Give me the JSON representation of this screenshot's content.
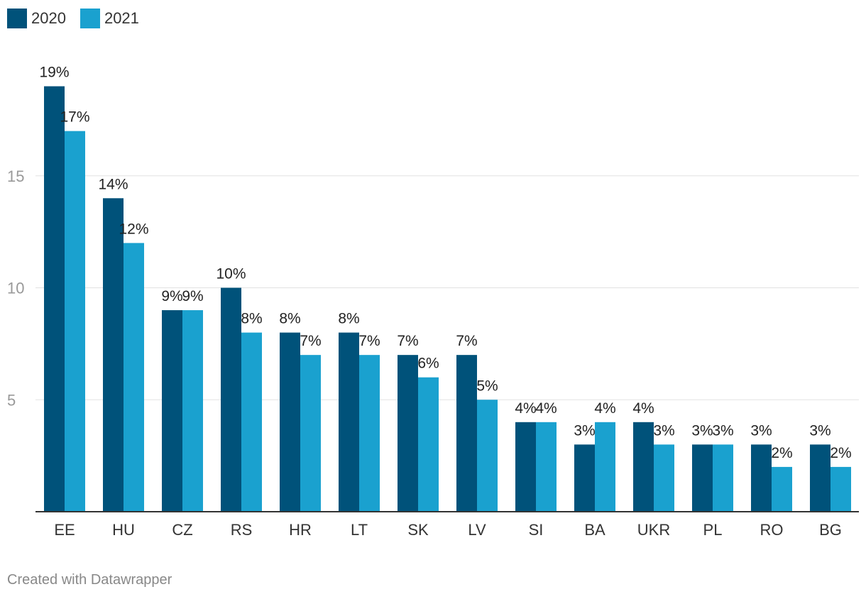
{
  "chart_data": {
    "type": "bar",
    "categories": [
      "EE",
      "HU",
      "CZ",
      "RS",
      "HR",
      "LT",
      "SK",
      "LV",
      "SI",
      "BA",
      "UKR",
      "PL",
      "RO",
      "BG"
    ],
    "series": [
      {
        "name": "2020",
        "color": "#00527a",
        "values": [
          19,
          14,
          9,
          10,
          8,
          8,
          7,
          7,
          4,
          3,
          4,
          3,
          3,
          3
        ],
        "labels": [
          "19%",
          "14%",
          "9%",
          "10%",
          "8%",
          "8%",
          "7%",
          "7%",
          "4%",
          "3%",
          "4%",
          "3%",
          "3%",
          "3%"
        ]
      },
      {
        "name": "2021",
        "color": "#1aa1cf",
        "values": [
          17,
          12,
          9,
          8,
          7,
          7,
          6,
          5,
          4,
          4,
          3,
          3,
          2,
          2
        ],
        "labels": [
          "17%",
          "12%",
          "9%",
          "8%",
          "7%",
          "7%",
          "6%",
          "5%",
          "4%",
          "4%",
          "3%",
          "3%",
          "2%",
          "2%"
        ]
      }
    ],
    "y_ticks": [
      "5",
      "10",
      "15"
    ],
    "y_tick_values": [
      5,
      10,
      15
    ],
    "ylim": [
      0,
      20
    ],
    "grid": true,
    "legend_position": "top-left"
  },
  "footer": {
    "credit": "Created with Datawrapper"
  }
}
